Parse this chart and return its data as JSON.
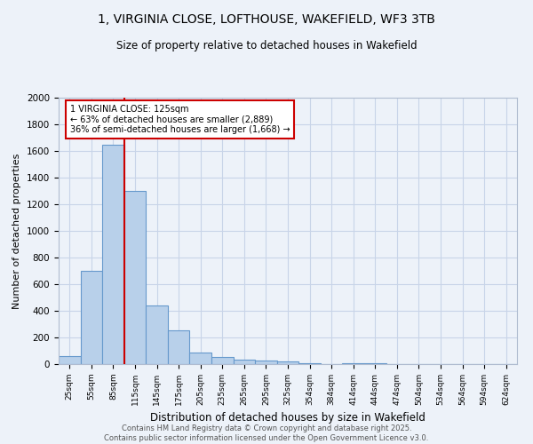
{
  "title_line1": "1, VIRGINIA CLOSE, LOFTHOUSE, WAKEFIELD, WF3 3TB",
  "title_line2": "Size of property relative to detached houses in Wakefield",
  "xlabel": "Distribution of detached houses by size in Wakefield",
  "ylabel": "Number of detached properties",
  "categories": [
    "25sqm",
    "55sqm",
    "85sqm",
    "115sqm",
    "145sqm",
    "175sqm",
    "205sqm",
    "235sqm",
    "265sqm",
    "295sqm",
    "325sqm",
    "354sqm",
    "384sqm",
    "414sqm",
    "444sqm",
    "474sqm",
    "504sqm",
    "534sqm",
    "564sqm",
    "594sqm",
    "624sqm"
  ],
  "values": [
    60,
    700,
    1650,
    1300,
    440,
    255,
    90,
    55,
    35,
    25,
    20,
    10,
    0,
    10,
    10,
    0,
    0,
    0,
    0,
    0,
    0
  ],
  "bar_color": "#b8d0ea",
  "bar_edge_color": "#6699cc",
  "bar_width": 1.0,
  "vline_color": "#cc0000",
  "annotation_text": "1 VIRGINIA CLOSE: 125sqm\n← 63% of detached houses are smaller (2,889)\n36% of semi-detached houses are larger (1,668) →",
  "annotation_box_color": "#ffffff",
  "annotation_border_color": "#cc0000",
  "ylim": [
    0,
    2000
  ],
  "yticks": [
    0,
    200,
    400,
    600,
    800,
    1000,
    1200,
    1400,
    1600,
    1800,
    2000
  ],
  "grid_color": "#c8d4e8",
  "footer_line1": "Contains HM Land Registry data © Crown copyright and database right 2025.",
  "footer_line2": "Contains public sector information licensed under the Open Government Licence v3.0.",
  "bg_color": "#edf2f9"
}
